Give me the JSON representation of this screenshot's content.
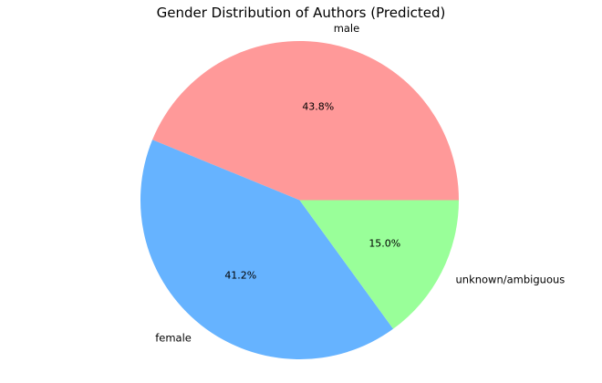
{
  "figure": {
    "title": "Gender Distribution of Authors (Predicted)",
    "background_color": "#ffffff",
    "text_color": "#000000"
  },
  "chart_data": {
    "type": "pie",
    "title": "Gender Distribution of Authors (Predicted)",
    "labels": [
      "male",
      "female",
      "unknown/ambiguous"
    ],
    "values": [
      43.8,
      41.2,
      15.0
    ],
    "pct_labels": [
      "43.8%",
      "41.2%",
      "15.0%"
    ],
    "colors": [
      "#ff9999",
      "#66b3ff",
      "#99ff99"
    ],
    "start_angle_deg": 0,
    "direction": "counterclockwise",
    "label_radius_frac": 1.1,
    "pct_radius_frac": 0.6,
    "legend": "none",
    "grid": "off"
  }
}
